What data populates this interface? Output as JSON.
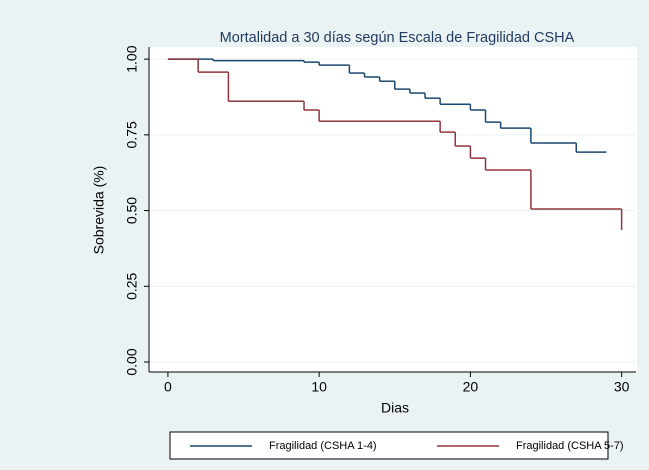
{
  "chart_data": {
    "type": "step",
    "title": "Mortalidad a 30 días según Escala de Fragilidad CSHA",
    "x_label": "Dias",
    "y_label": "Sobrevida (%)",
    "xlim": [
      -1.25,
      30.95
    ],
    "xticks": [
      0,
      10,
      20,
      30
    ],
    "ylim": [
      -0.033,
      1.04
    ],
    "yticks": [
      {
        "value": 0,
        "label": "0.00"
      },
      {
        "value": 0.25,
        "label": "0.25"
      },
      {
        "value": 0.5,
        "label": "0.50"
      },
      {
        "value": 0.75,
        "label": "0.75"
      },
      {
        "value": 1,
        "label": "1.00"
      }
    ],
    "grid": true,
    "legend": "bottom",
    "series": [
      {
        "name": "Fragilidad (CSHA 1-4)",
        "color": "#1a476f",
        "x": [
          0,
          3,
          9,
          10,
          12,
          13,
          14,
          15,
          16,
          17,
          18,
          20,
          21,
          22,
          24,
          27,
          29
        ],
        "values": [
          1.0,
          0.995,
          0.99,
          0.98,
          0.954,
          0.941,
          0.927,
          0.901,
          0.888,
          0.871,
          0.851,
          0.832,
          0.792,
          0.772,
          0.723,
          0.693,
          0.693
        ]
      },
      {
        "name": "Fragilidad (CSHA 5-7)",
        "color": "#90353b",
        "x": [
          0,
          2,
          4,
          9,
          10,
          18,
          19,
          20,
          21,
          24,
          30
        ],
        "values": [
          1.0,
          0.957,
          0.861,
          0.832,
          0.795,
          0.759,
          0.713,
          0.673,
          0.634,
          0.505,
          0.436
        ]
      }
    ]
  }
}
